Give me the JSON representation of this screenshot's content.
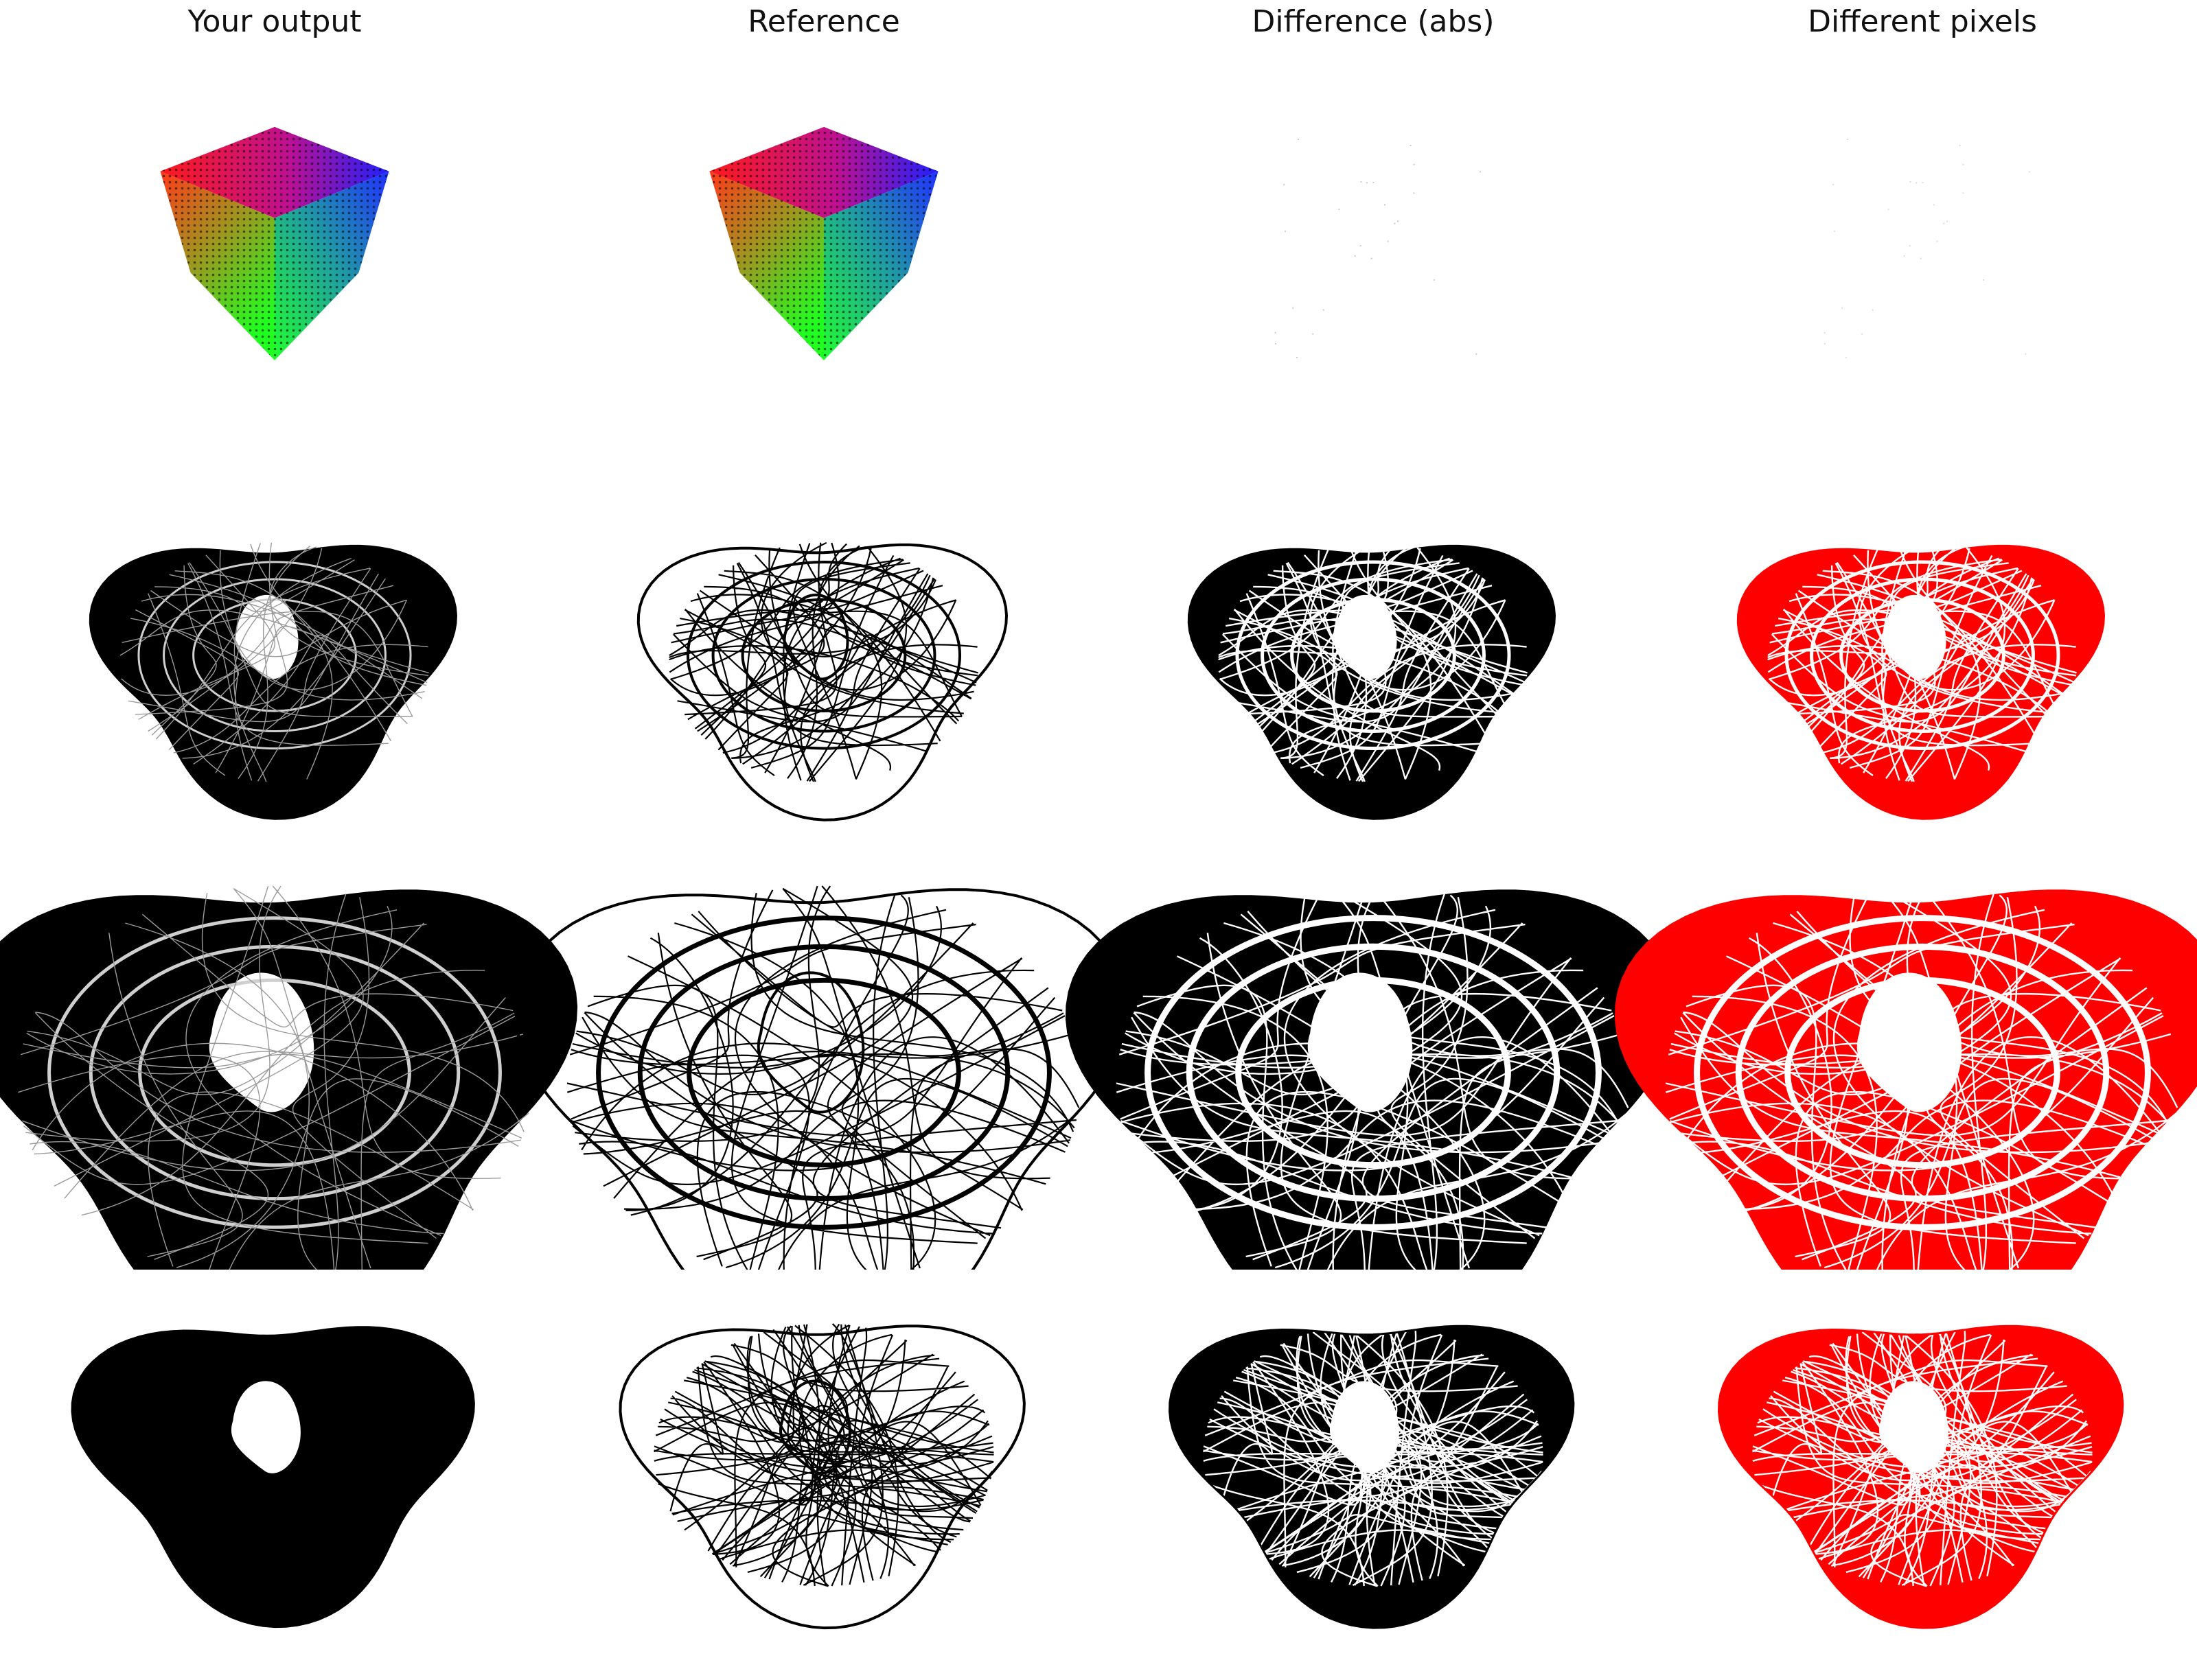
{
  "columns": [
    {
      "title": "Your output",
      "mode": "output"
    },
    {
      "title": "Reference",
      "mode": "reference"
    },
    {
      "title": "Difference (abs)",
      "mode": "diff"
    },
    {
      "title": "Different pixels",
      "mode": "pixels"
    }
  ],
  "rows": [
    {
      "name": "rgb-point-cube",
      "shape": "cube"
    },
    {
      "name": "torus-wireframe-small",
      "shape": "torus"
    },
    {
      "name": "torus-wireframe-large",
      "shape": "torus-large"
    },
    {
      "name": "torus-wireframe-dense",
      "shape": "torus-dense"
    }
  ],
  "colors": {
    "background": "#ffffff",
    "ink": "#000000",
    "diff_highlight": "#ff0000"
  }
}
